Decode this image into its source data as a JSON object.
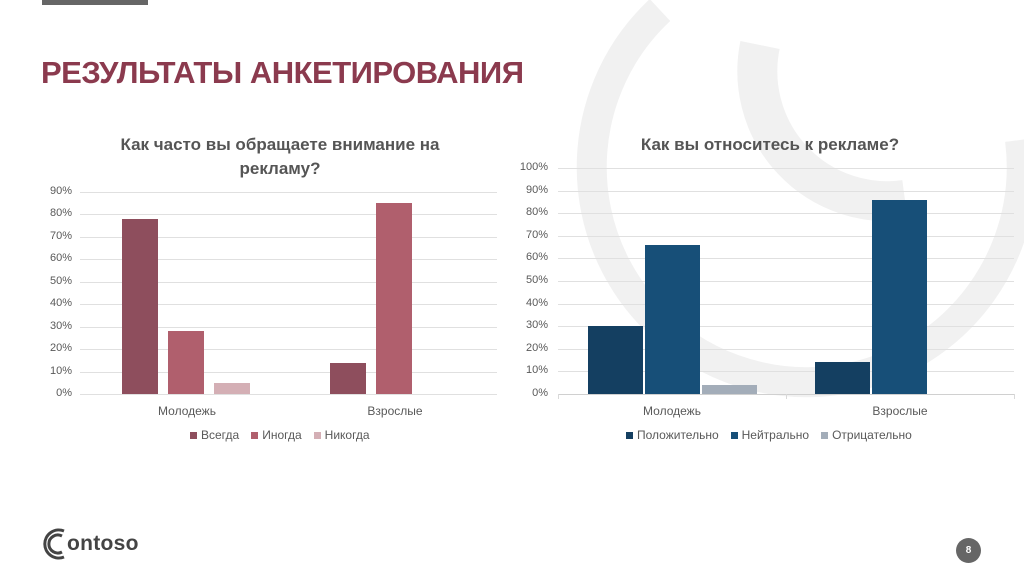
{
  "slide": {
    "title": "РЕЗУЛЬТАТЫ АНКЕТИРОВАНИЯ",
    "page_number": "8",
    "logo_text": "ontoso",
    "brand_colors": {
      "title": "#8B3A4E",
      "accent_gray": "#666666"
    }
  },
  "chart_data": [
    {
      "type": "bar",
      "title": "Как часто вы обращаете внимание на рекламу?",
      "title_line1": "Как часто вы обращаете внимание на",
      "title_line2": "рекламу?",
      "categories": [
        "Молодежь",
        "Взрослые"
      ],
      "series": [
        {
          "name": "Всегда",
          "values": [
            78,
            14
          ],
          "color": "#8E4E5D"
        },
        {
          "name": "Иногда",
          "values": [
            28,
            85
          ],
          "color": "#B05F6D"
        },
        {
          "name": "Никогда",
          "values": [
            5,
            0
          ],
          "color": "#D4AFB5"
        }
      ],
      "yticks": [
        "0%",
        "10%",
        "20%",
        "30%",
        "40%",
        "50%",
        "60%",
        "70%",
        "80%",
        "90%"
      ],
      "ylim": [
        0,
        90
      ],
      "xlabel": "",
      "ylabel": "",
      "grid": true,
      "legend_position": "bottom"
    },
    {
      "type": "bar",
      "title": "Как вы относитесь к рекламе?",
      "categories": [
        "Молодежь",
        "Взрослые"
      ],
      "series": [
        {
          "name": "Положительно",
          "values": [
            30,
            14
          ],
          "color": "#143F61"
        },
        {
          "name": "Нейтрально",
          "values": [
            66,
            86
          ],
          "color": "#174F78"
        },
        {
          "name": "Отрицательно",
          "values": [
            4,
            0
          ],
          "color": "#A3ADB9"
        }
      ],
      "yticks": [
        "0%",
        "10%",
        "20%",
        "30%",
        "40%",
        "50%",
        "60%",
        "70%",
        "80%",
        "90%",
        "100%"
      ],
      "ylim": [
        0,
        100
      ],
      "xlabel": "",
      "ylabel": "",
      "grid": true,
      "legend_position": "bottom"
    }
  ]
}
